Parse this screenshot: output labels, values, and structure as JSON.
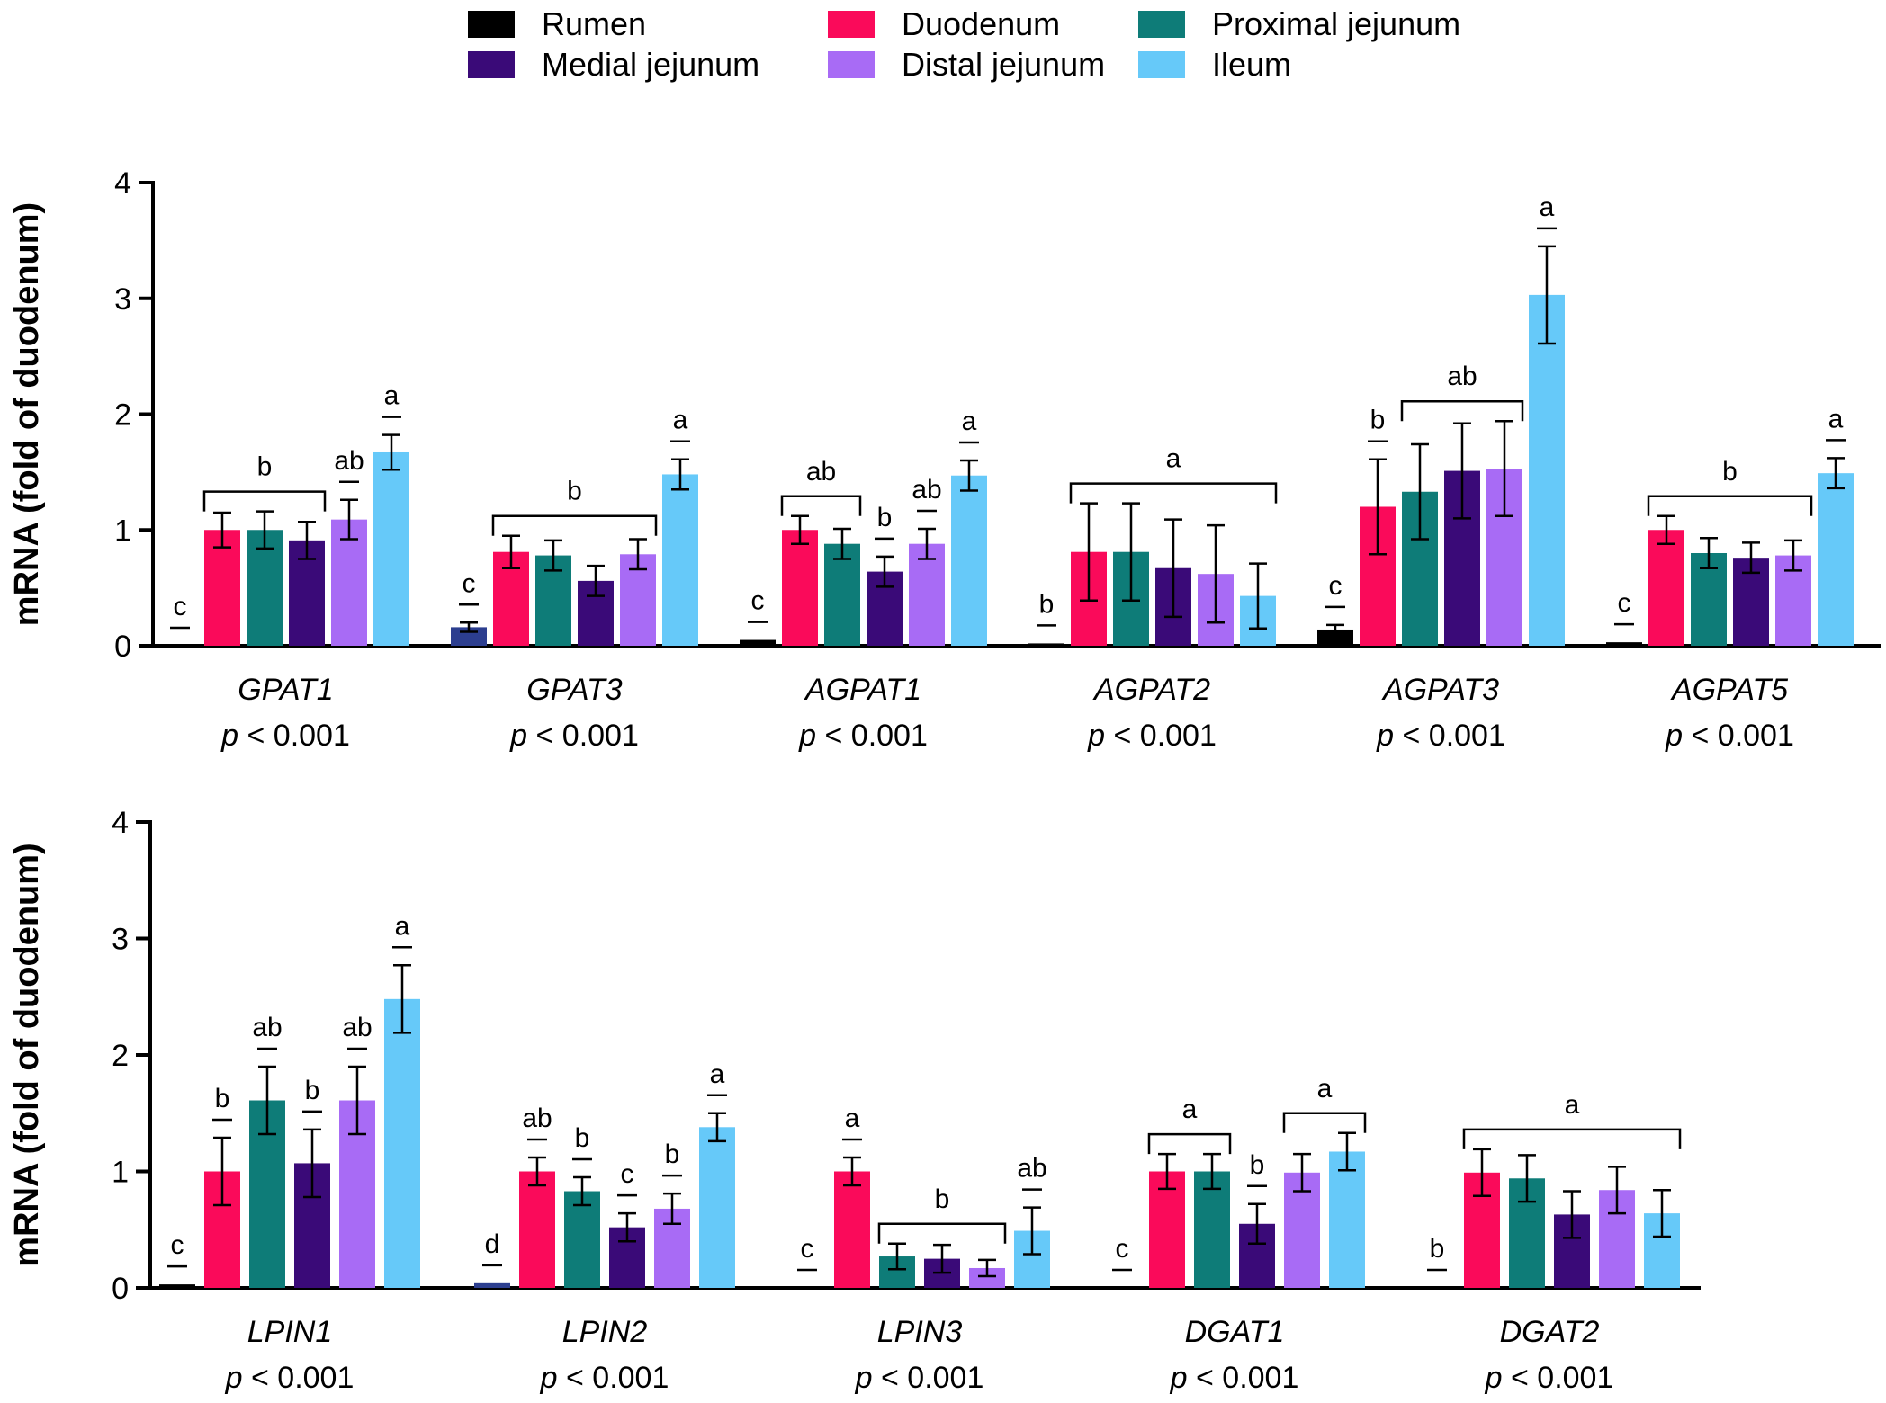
{
  "chart_data": {
    "type": "bar",
    "legend": {
      "placement": "top",
      "entries": [
        {
          "name": "Rumen",
          "color": "#000000"
        },
        {
          "name": "Duodenum",
          "color": "#FA0A5A"
        },
        {
          "name": "Proximal jejunum",
          "color": "#0E7C78"
        },
        {
          "name": "Medial jejunum",
          "color": "#3A0A78"
        },
        {
          "name": "Distal jejunum",
          "color": "#A86BF5"
        },
        {
          "name": "Ileum",
          "color": "#66C9F9"
        }
      ]
    },
    "ylabel": "mRNA (fold of duodenum)",
    "ylim": [
      0,
      4
    ],
    "yticks": [
      "0",
      "1",
      "2",
      "3",
      "4"
    ],
    "p_prefix": "p",
    "p_suffix": " < 0.001",
    "panels": [
      {
        "genes": [
          {
            "name": "GPAT1",
            "p": "p < 0.001",
            "bars": [
              {
                "v": 0.0,
                "e": 0.0,
                "c": "#000000"
              },
              {
                "v": 1.0,
                "e": 0.15
              },
              {
                "v": 1.0,
                "e": 0.16
              },
              {
                "v": 0.91,
                "e": 0.16
              },
              {
                "v": 1.09,
                "e": 0.17
              },
              {
                "v": 1.67,
                "e": 0.15
              }
            ],
            "letters": [
              {
                "text": "c",
                "bars": [
                  0
                ]
              },
              {
                "text": "b",
                "bars": [
                  1,
                  3
                ]
              },
              {
                "text": "ab",
                "bars": [
                  4
                ]
              },
              {
                "text": "a",
                "bars": [
                  5
                ]
              }
            ]
          },
          {
            "name": "GPAT3",
            "p": "p < 0.001",
            "bars": [
              {
                "v": 0.16,
                "e": 0.04,
                "c": "#2C3E8F"
              },
              {
                "v": 0.81,
                "e": 0.14
              },
              {
                "v": 0.78,
                "e": 0.13
              },
              {
                "v": 0.56,
                "e": 0.13
              },
              {
                "v": 0.79,
                "e": 0.13
              },
              {
                "v": 1.48,
                "e": 0.13
              }
            ],
            "letters": [
              {
                "text": "c",
                "bars": [
                  0
                ]
              },
              {
                "text": "b",
                "bars": [
                  1,
                  4
                ]
              },
              {
                "text": "a",
                "bars": [
                  5
                ]
              }
            ]
          },
          {
            "name": "AGPAT1",
            "p": "p < 0.001",
            "bars": [
              {
                "v": 0.05,
                "e": 0.0,
                "c": "#000000"
              },
              {
                "v": 1.0,
                "e": 0.12
              },
              {
                "v": 0.88,
                "e": 0.13
              },
              {
                "v": 0.64,
                "e": 0.13
              },
              {
                "v": 0.88,
                "e": 0.13
              },
              {
                "v": 1.47,
                "e": 0.13
              }
            ],
            "letters": [
              {
                "text": "c",
                "bars": [
                  0
                ]
              },
              {
                "text": "ab",
                "bars": [
                  1,
                  2
                ]
              },
              {
                "text": "b",
                "bars": [
                  3
                ]
              },
              {
                "text": "ab",
                "bars": [
                  4
                ]
              },
              {
                "text": "a",
                "bars": [
                  5
                ]
              }
            ]
          },
          {
            "name": "AGPAT2",
            "p": "p < 0.001",
            "bars": [
              {
                "v": 0.02,
                "e": 0.0,
                "c": "#000000"
              },
              {
                "v": 0.81,
                "e": 0.42
              },
              {
                "v": 0.81,
                "e": 0.42
              },
              {
                "v": 0.67,
                "e": 0.42
              },
              {
                "v": 0.62,
                "e": 0.42
              },
              {
                "v": 0.43,
                "e": 0.28
              }
            ],
            "letters": [
              {
                "text": "b",
                "bars": [
                  0
                ]
              },
              {
                "text": "a",
                "bars": [
                  1,
                  5
                ]
              }
            ]
          },
          {
            "name": "AGPAT3",
            "p": "p < 0.001",
            "bars": [
              {
                "v": 0.14,
                "e": 0.04,
                "c": "#000000"
              },
              {
                "v": 1.2,
                "e": 0.41
              },
              {
                "v": 1.33,
                "e": 0.41
              },
              {
                "v": 1.51,
                "e": 0.41
              },
              {
                "v": 1.53,
                "e": 0.41
              },
              {
                "v": 3.03,
                "e": 0.42
              }
            ],
            "letters": [
              {
                "text": "c",
                "bars": [
                  0
                ]
              },
              {
                "text": "b",
                "bars": [
                  1
                ]
              },
              {
                "text": "ab",
                "bars": [
                  2,
                  4
                ]
              },
              {
                "text": "a",
                "bars": [
                  5
                ]
              }
            ]
          },
          {
            "name": "AGPAT5",
            "p": "p < 0.001",
            "bars": [
              {
                "v": 0.03,
                "e": 0.0,
                "c": "#000000"
              },
              {
                "v": 1.0,
                "e": 0.12
              },
              {
                "v": 0.8,
                "e": 0.13
              },
              {
                "v": 0.76,
                "e": 0.13
              },
              {
                "v": 0.78,
                "e": 0.13
              },
              {
                "v": 1.49,
                "e": 0.13
              }
            ],
            "letters": [
              {
                "text": "c",
                "bars": [
                  0
                ]
              },
              {
                "text": "b",
                "bars": [
                  1,
                  4
                ]
              },
              {
                "text": "a",
                "bars": [
                  5
                ]
              }
            ]
          }
        ]
      },
      {
        "genes": [
          {
            "name": "LPIN1",
            "p": "p < 0.001",
            "bars": [
              {
                "v": 0.03,
                "e": 0.0,
                "c": "#000000"
              },
              {
                "v": 1.0,
                "e": 0.29
              },
              {
                "v": 1.61,
                "e": 0.29
              },
              {
                "v": 1.07,
                "e": 0.29
              },
              {
                "v": 1.61,
                "e": 0.29
              },
              {
                "v": 2.48,
                "e": 0.29
              }
            ],
            "letters": [
              {
                "text": "c",
                "bars": [
                  0
                ]
              },
              {
                "text": "b",
                "bars": [
                  1
                ]
              },
              {
                "text": "ab",
                "bars": [
                  2
                ]
              },
              {
                "text": "b",
                "bars": [
                  3
                ]
              },
              {
                "text": "ab",
                "bars": [
                  4
                ]
              },
              {
                "text": "a",
                "bars": [
                  5
                ]
              }
            ]
          },
          {
            "name": "LPIN2",
            "p": "p < 0.001",
            "bars": [
              {
                "v": 0.04,
                "e": 0.0,
                "c": "#2C3E8F"
              },
              {
                "v": 1.0,
                "e": 0.12
              },
              {
                "v": 0.83,
                "e": 0.12
              },
              {
                "v": 0.52,
                "e": 0.12
              },
              {
                "v": 0.68,
                "e": 0.13
              },
              {
                "v": 1.38,
                "e": 0.12
              }
            ],
            "letters": [
              {
                "text": "d",
                "bars": [
                  0
                ]
              },
              {
                "text": "ab",
                "bars": [
                  1
                ]
              },
              {
                "text": "b",
                "bars": [
                  2
                ]
              },
              {
                "text": "c",
                "bars": [
                  3
                ]
              },
              {
                "text": "b",
                "bars": [
                  4
                ]
              },
              {
                "text": "a",
                "bars": [
                  5
                ]
              }
            ]
          },
          {
            "name": "LPIN3",
            "p": "p < 0.001",
            "bars": [
              {
                "v": 0.0,
                "e": 0.0,
                "c": "#000000"
              },
              {
                "v": 1.0,
                "e": 0.12
              },
              {
                "v": 0.27,
                "e": 0.11
              },
              {
                "v": 0.25,
                "e": 0.12
              },
              {
                "v": 0.17,
                "e": 0.07
              },
              {
                "v": 0.49,
                "e": 0.2
              }
            ],
            "letters": [
              {
                "text": "c",
                "bars": [
                  0
                ]
              },
              {
                "text": "a",
                "bars": [
                  1
                ]
              },
              {
                "text": "b",
                "bars": [
                  2,
                  4
                ]
              },
              {
                "text": "ab",
                "bars": [
                  5
                ]
              }
            ]
          },
          {
            "name": "DGAT1",
            "p": "p < 0.001",
            "bars": [
              {
                "v": 0.0,
                "e": 0.0,
                "c": "#000000"
              },
              {
                "v": 1.0,
                "e": 0.15
              },
              {
                "v": 1.0,
                "e": 0.15
              },
              {
                "v": 0.55,
                "e": 0.17
              },
              {
                "v": 0.99,
                "e": 0.16
              },
              {
                "v": 1.17,
                "e": 0.16
              }
            ],
            "letters": [
              {
                "text": "c",
                "bars": [
                  0
                ]
              },
              {
                "text": "a",
                "bars": [
                  1,
                  2
                ]
              },
              {
                "text": "b",
                "bars": [
                  3
                ]
              },
              {
                "text": "a",
                "bars": [
                  4,
                  5
                ]
              }
            ]
          },
          {
            "name": "DGAT2",
            "p": "p < 0.001",
            "bars": [
              {
                "v": 0.0,
                "e": 0.0,
                "c": "#000000"
              },
              {
                "v": 0.99,
                "e": 0.2
              },
              {
                "v": 0.94,
                "e": 0.2
              },
              {
                "v": 0.63,
                "e": 0.2
              },
              {
                "v": 0.84,
                "e": 0.2
              },
              {
                "v": 0.64,
                "e": 0.2
              }
            ],
            "letters": [
              {
                "text": "b",
                "bars": [
                  0
                ]
              },
              {
                "text": "a",
                "bars": [
                  1,
                  5
                ]
              }
            ]
          }
        ]
      }
    ]
  }
}
